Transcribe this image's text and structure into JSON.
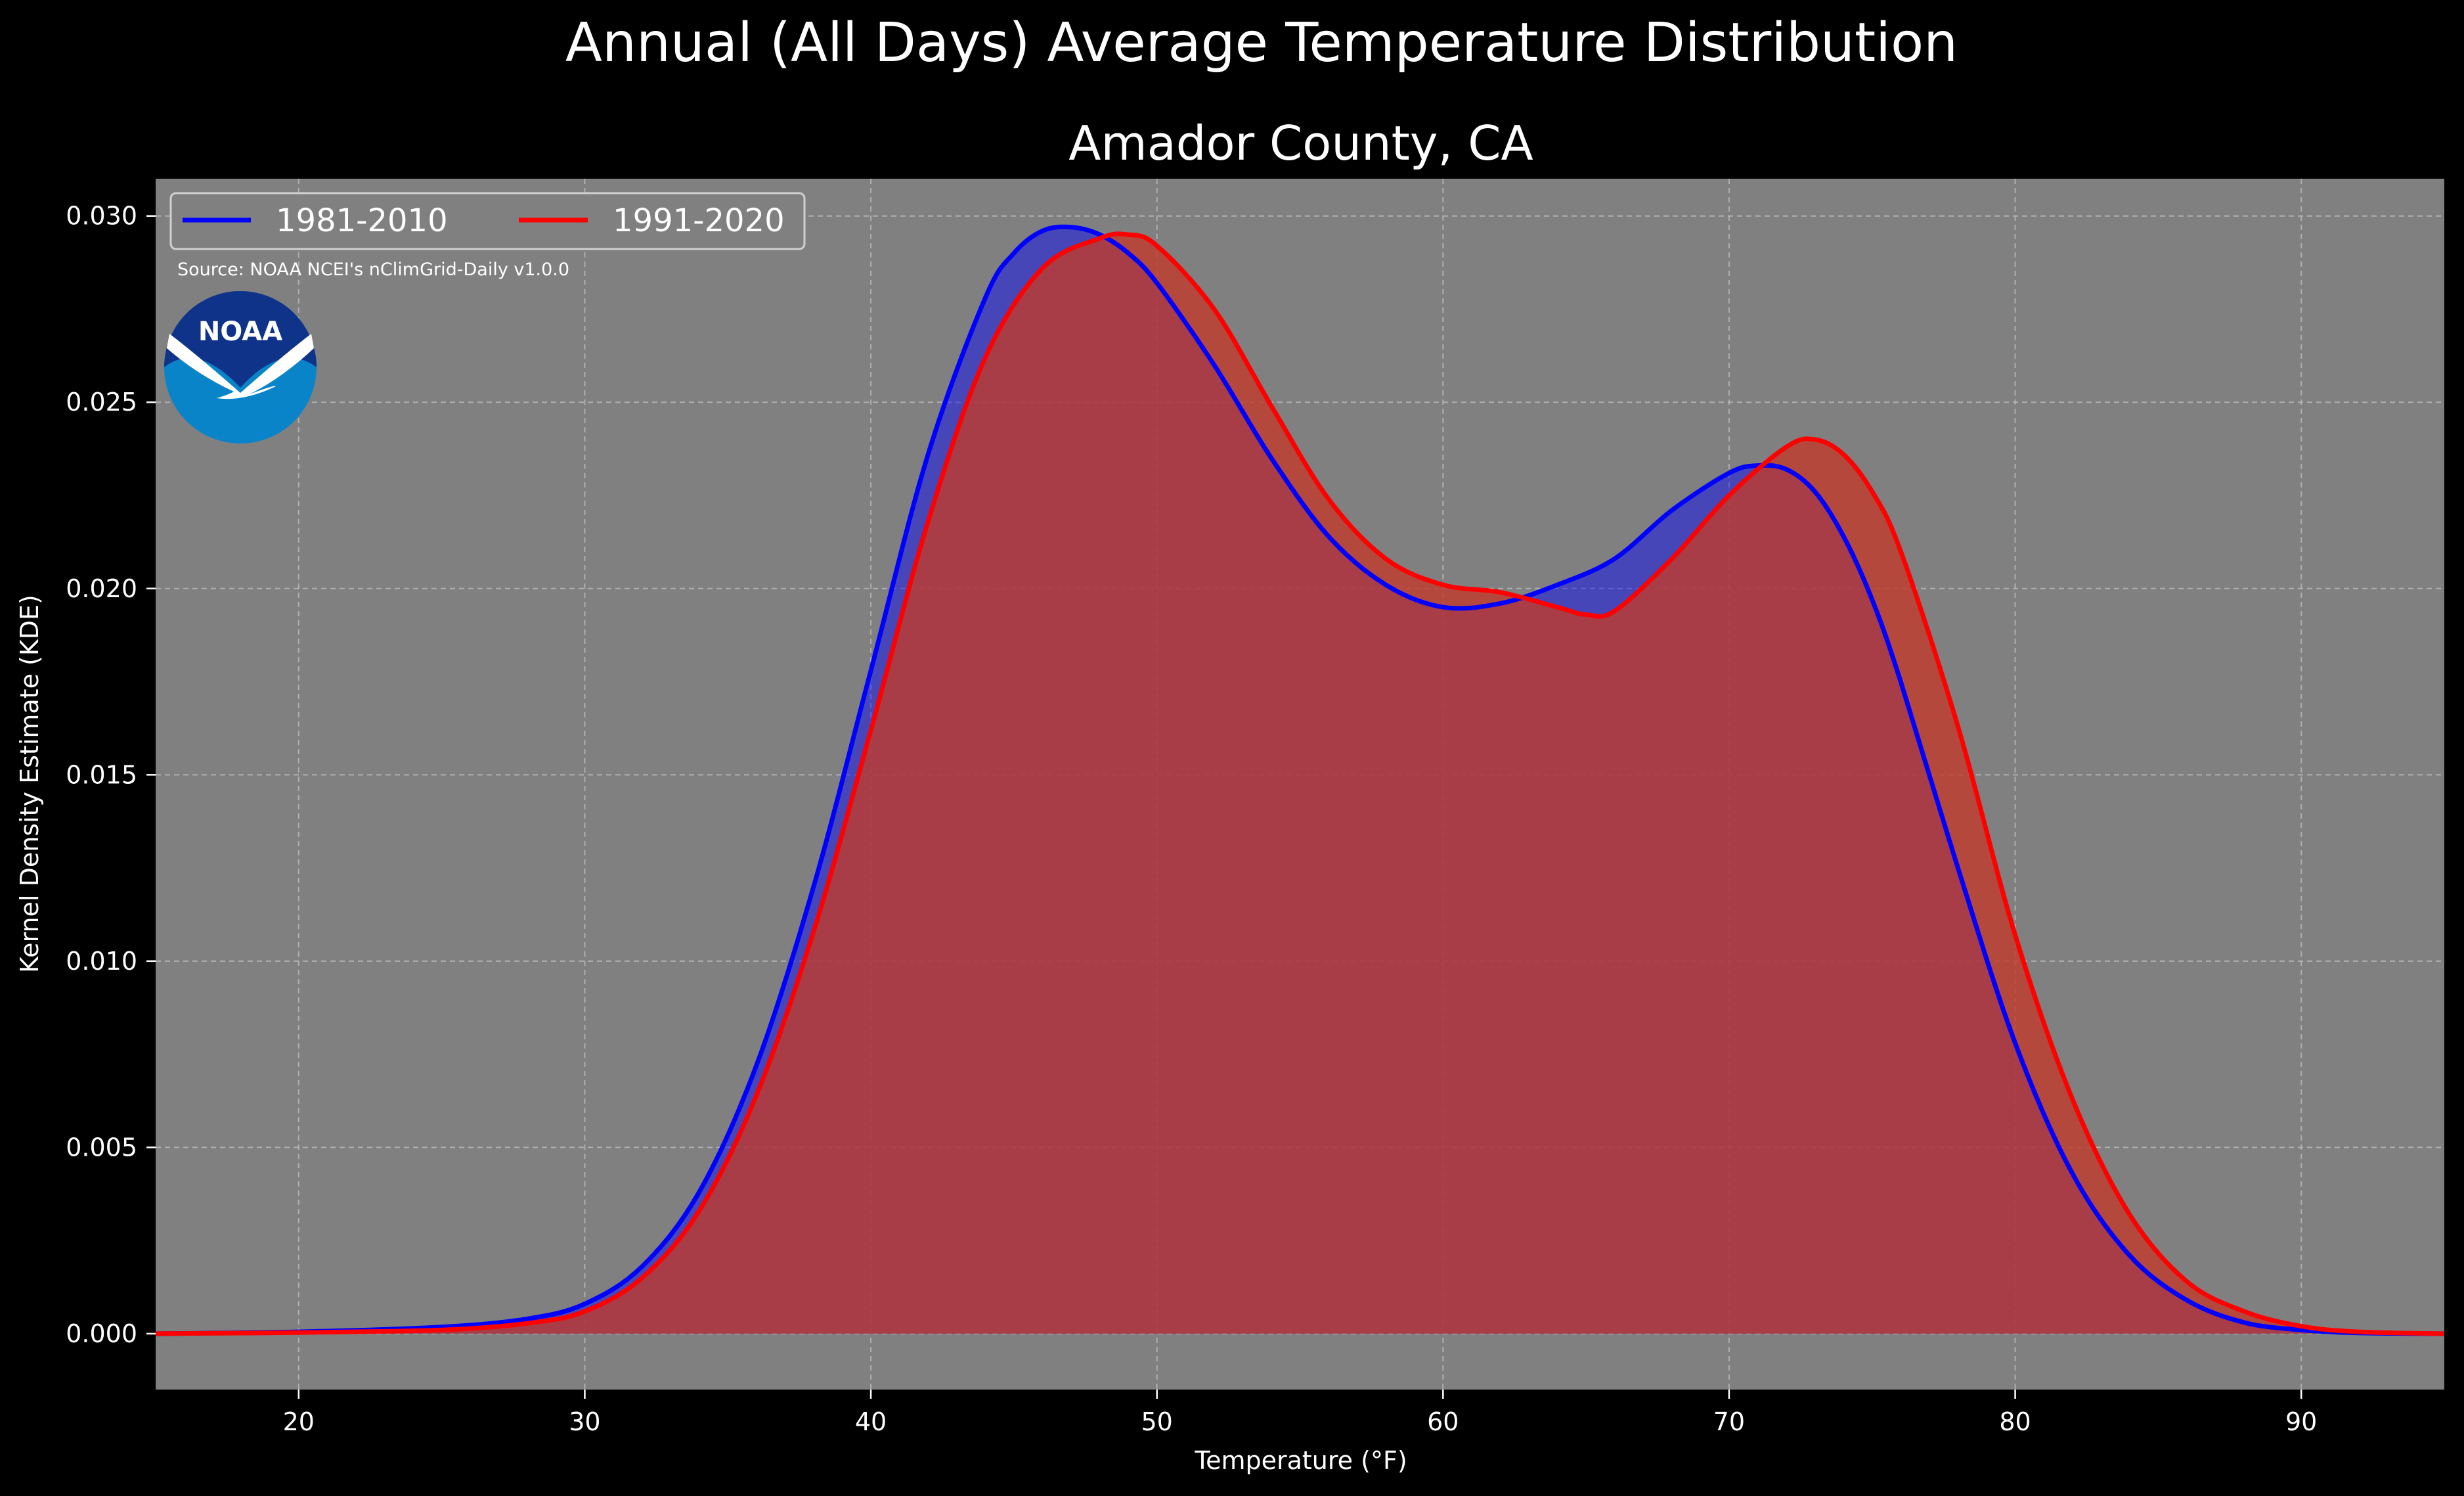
{
  "chart_data": {
    "type": "area",
    "suptitle": "Annual (All Days) Average Temperature Distribution",
    "title": "Amador County, CA",
    "xlabel": "Temperature ($^\\circ$F)",
    "xlabel_display": "Temperature (°F)",
    "ylabel": "Kernel Density Estimate (KDE)",
    "source": "Source: NOAA NCEI's nClimGrid-Daily v1.0.0",
    "logo_text": "NOAA",
    "xlim": [
      15,
      95
    ],
    "ylim": [
      -0.0015,
      0.031
    ],
    "grid": true,
    "legend_position": "upper-left",
    "x_ticks": [
      20,
      30,
      40,
      50,
      60,
      70,
      80,
      90
    ],
    "x_tick_labels": [
      "20",
      "30",
      "40",
      "50",
      "60",
      "70",
      "80",
      "90"
    ],
    "y_ticks": [
      0.0,
      0.005,
      0.01,
      0.015,
      0.02,
      0.025,
      0.03
    ],
    "y_tick_labels": [
      "0.000",
      "0.005",
      "0.010",
      "0.015",
      "0.020",
      "0.025",
      "0.030"
    ],
    "colors": {
      "background": "#000000",
      "plot_bg": "#808080"
    },
    "series": [
      {
        "name": "1981-2010",
        "line_color": "#0000ff",
        "fill_color": "#0000ff",
        "fill_opacity": 0.45,
        "points": [
          [
            15,
            0.0
          ],
          [
            20,
            5e-05
          ],
          [
            25,
            0.00018
          ],
          [
            28,
            0.0004
          ],
          [
            30,
            0.0008
          ],
          [
            32,
            0.0018
          ],
          [
            34,
            0.0038
          ],
          [
            36,
            0.0072
          ],
          [
            38,
            0.012
          ],
          [
            40,
            0.0178
          ],
          [
            42,
            0.0236
          ],
          [
            44,
            0.0278
          ],
          [
            45,
            0.029
          ],
          [
            46,
            0.0296
          ],
          [
            47,
            0.0297
          ],
          [
            48,
            0.0295
          ],
          [
            49,
            0.029
          ],
          [
            50,
            0.0282
          ],
          [
            52,
            0.026
          ],
          [
            54,
            0.0235
          ],
          [
            56,
            0.0214
          ],
          [
            58,
            0.0201
          ],
          [
            60,
            0.0195
          ],
          [
            62,
            0.0196
          ],
          [
            64,
            0.0201
          ],
          [
            66,
            0.0208
          ],
          [
            68,
            0.0221
          ],
          [
            70,
            0.0231
          ],
          [
            71,
            0.0233
          ],
          [
            72,
            0.0232
          ],
          [
            73,
            0.0226
          ],
          [
            74,
            0.0214
          ],
          [
            75,
            0.0197
          ],
          [
            76,
            0.0175
          ],
          [
            78,
            0.0125
          ],
          [
            80,
            0.0078
          ],
          [
            82,
            0.0043
          ],
          [
            84,
            0.0021
          ],
          [
            86,
            0.0009
          ],
          [
            88,
            0.0003
          ],
          [
            90,
            0.0001
          ],
          [
            92,
            2e-05
          ],
          [
            95,
            0.0
          ]
        ]
      },
      {
        "name": "1991-2020",
        "line_color": "#ff0000",
        "fill_color": "#c0392b",
        "fill_opacity": 0.8,
        "points": [
          [
            15,
            0.0
          ],
          [
            20,
            3e-05
          ],
          [
            25,
            0.0001
          ],
          [
            28,
            0.00028
          ],
          [
            30,
            0.0006
          ],
          [
            32,
            0.0015
          ],
          [
            34,
            0.0033
          ],
          [
            36,
            0.0064
          ],
          [
            38,
            0.0108
          ],
          [
            40,
            0.0162
          ],
          [
            42,
            0.0218
          ],
          [
            44,
            0.0262
          ],
          [
            46,
            0.0286
          ],
          [
            48,
            0.0294
          ],
          [
            49,
            0.0295
          ],
          [
            50,
            0.0292
          ],
          [
            52,
            0.0275
          ],
          [
            54,
            0.0249
          ],
          [
            56,
            0.0224
          ],
          [
            58,
            0.0208
          ],
          [
            60,
            0.0201
          ],
          [
            62,
            0.0199
          ],
          [
            64,
            0.0195
          ],
          [
            65,
            0.0193
          ],
          [
            66,
            0.0194
          ],
          [
            68,
            0.0208
          ],
          [
            70,
            0.0225
          ],
          [
            72,
            0.0238
          ],
          [
            73,
            0.024
          ],
          [
            74,
            0.0236
          ],
          [
            75,
            0.0226
          ],
          [
            76,
            0.021
          ],
          [
            78,
            0.0163
          ],
          [
            80,
            0.0107
          ],
          [
            82,
            0.0063
          ],
          [
            84,
            0.0032
          ],
          [
            86,
            0.0014
          ],
          [
            88,
            0.0006
          ],
          [
            90,
            0.0002
          ],
          [
            92,
            5e-05
          ],
          [
            95,
            0.0
          ]
        ]
      }
    ]
  }
}
